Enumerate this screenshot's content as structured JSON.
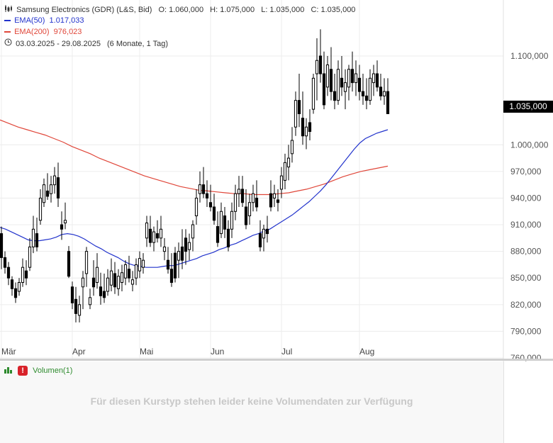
{
  "header": {
    "instrument": "Samsung Electronics (GDR) (L&S, Bid)",
    "open": "O: 1.060,000",
    "high": "H: 1.075,000",
    "low": "L: 1.035,000",
    "close": "C: 1.035,000",
    "ema50_label": "EMA(50)",
    "ema50_value": "1.017,033",
    "ema200_label": "EMA(200)",
    "ema200_value": "976,023",
    "range": "03.03.2025 - 29.08.2025",
    "range_detail": "(6 Monate, 1 Tag)"
  },
  "last_price_label": "1.035,000",
  "volume": {
    "label": "Volumen(1)",
    "message": "Für diesen Kurstyp stehen leider keine Volumendaten zur Verfügung"
  },
  "colors": {
    "ema50": "#2233cc",
    "ema200": "#e0473a",
    "candle": "#000000",
    "volume_label": "#2e8b2e",
    "warning": "#d8222a"
  },
  "icons": [
    "candlestick-icon",
    "clock-icon",
    "volume-bars-icon",
    "warning-icon"
  ],
  "chart_data": {
    "type": "candlestick",
    "x_tick_labels": [
      "Mär",
      "Apr",
      "Mai",
      "Jun",
      "Jul",
      "Aug"
    ],
    "y_tick_values": [
      760,
      790,
      820,
      850,
      880,
      910,
      940,
      970,
      1000,
      1100
    ],
    "y_tick_labels": [
      "760,000",
      "790,000",
      "820,000",
      "850,000",
      "880,000",
      "910,000",
      "940,000",
      "970,000",
      "1.000,000",
      "1.100,000"
    ],
    "ylim": [
      758,
      1140
    ],
    "grid": true,
    "candles": [
      {
        "o": 900,
        "h": 908,
        "l": 860,
        "c": 873
      },
      {
        "o": 873,
        "h": 880,
        "l": 855,
        "c": 862
      },
      {
        "o": 862,
        "h": 868,
        "l": 842,
        "c": 850
      },
      {
        "o": 848,
        "h": 852,
        "l": 830,
        "c": 838
      },
      {
        "o": 838,
        "h": 845,
        "l": 822,
        "c": 828
      },
      {
        "o": 835,
        "h": 850,
        "l": 830,
        "c": 845
      },
      {
        "o": 845,
        "h": 872,
        "l": 840,
        "c": 862
      },
      {
        "o": 858,
        "h": 870,
        "l": 842,
        "c": 850
      },
      {
        "o": 862,
        "h": 895,
        "l": 858,
        "c": 885
      },
      {
        "o": 885,
        "h": 920,
        "l": 878,
        "c": 905
      },
      {
        "o": 900,
        "h": 918,
        "l": 880,
        "c": 885
      },
      {
        "o": 915,
        "h": 950,
        "l": 910,
        "c": 940
      },
      {
        "o": 935,
        "h": 962,
        "l": 930,
        "c": 955
      },
      {
        "o": 948,
        "h": 968,
        "l": 938,
        "c": 942
      },
      {
        "o": 945,
        "h": 965,
        "l": 935,
        "c": 955
      },
      {
        "o": 955,
        "h": 975,
        "l": 945,
        "c": 965
      },
      {
        "o": 963,
        "h": 980,
        "l": 930,
        "c": 940
      },
      {
        "o": 910,
        "h": 925,
        "l": 893,
        "c": 905
      },
      {
        "o": 912,
        "h": 935,
        "l": 905,
        "c": 915
      },
      {
        "o": 880,
        "h": 886,
        "l": 850,
        "c": 852
      },
      {
        "o": 840,
        "h": 846,
        "l": 815,
        "c": 822
      },
      {
        "o": 826,
        "h": 840,
        "l": 800,
        "c": 810
      },
      {
        "o": 808,
        "h": 830,
        "l": 800,
        "c": 820
      },
      {
        "o": 840,
        "h": 858,
        "l": 815,
        "c": 850
      },
      {
        "o": 855,
        "h": 885,
        "l": 840,
        "c": 880
      },
      {
        "o": 820,
        "h": 838,
        "l": 815,
        "c": 828
      },
      {
        "o": 850,
        "h": 870,
        "l": 830,
        "c": 840
      },
      {
        "o": 845,
        "h": 878,
        "l": 838,
        "c": 862
      },
      {
        "o": 840,
        "h": 856,
        "l": 820,
        "c": 830
      },
      {
        "o": 835,
        "h": 855,
        "l": 822,
        "c": 828
      },
      {
        "o": 835,
        "h": 860,
        "l": 830,
        "c": 850
      },
      {
        "o": 842,
        "h": 872,
        "l": 835,
        "c": 858
      },
      {
        "o": 855,
        "h": 868,
        "l": 832,
        "c": 840
      },
      {
        "o": 838,
        "h": 860,
        "l": 830,
        "c": 852
      },
      {
        "o": 845,
        "h": 865,
        "l": 835,
        "c": 856
      },
      {
        "o": 850,
        "h": 870,
        "l": 842,
        "c": 865
      },
      {
        "o": 860,
        "h": 875,
        "l": 845,
        "c": 850
      },
      {
        "o": 843,
        "h": 858,
        "l": 835,
        "c": 848
      },
      {
        "o": 850,
        "h": 872,
        "l": 842,
        "c": 865
      },
      {
        "o": 858,
        "h": 880,
        "l": 850,
        "c": 872
      },
      {
        "o": 862,
        "h": 878,
        "l": 855,
        "c": 870
      },
      {
        "o": 895,
        "h": 920,
        "l": 885,
        "c": 912
      },
      {
        "o": 905,
        "h": 920,
        "l": 885,
        "c": 890
      },
      {
        "o": 890,
        "h": 908,
        "l": 880,
        "c": 902
      },
      {
        "o": 900,
        "h": 915,
        "l": 890,
        "c": 895
      },
      {
        "o": 895,
        "h": 920,
        "l": 885,
        "c": 905
      },
      {
        "o": 880,
        "h": 895,
        "l": 870,
        "c": 885
      },
      {
        "o": 870,
        "h": 885,
        "l": 855,
        "c": 860
      },
      {
        "o": 860,
        "h": 878,
        "l": 840,
        "c": 845
      },
      {
        "o": 878,
        "h": 885,
        "l": 845,
        "c": 850
      },
      {
        "o": 870,
        "h": 890,
        "l": 850,
        "c": 880
      },
      {
        "o": 885,
        "h": 905,
        "l": 860,
        "c": 870
      },
      {
        "o": 895,
        "h": 905,
        "l": 865,
        "c": 880
      },
      {
        "o": 882,
        "h": 900,
        "l": 870,
        "c": 890
      },
      {
        "o": 895,
        "h": 915,
        "l": 880,
        "c": 910
      },
      {
        "o": 920,
        "h": 950,
        "l": 910,
        "c": 940
      },
      {
        "o": 945,
        "h": 970,
        "l": 935,
        "c": 955
      },
      {
        "o": 955,
        "h": 975,
        "l": 940,
        "c": 945
      },
      {
        "o": 945,
        "h": 960,
        "l": 930,
        "c": 940
      },
      {
        "o": 935,
        "h": 955,
        "l": 925,
        "c": 930
      },
      {
        "o": 930,
        "h": 945,
        "l": 910,
        "c": 915
      },
      {
        "o": 908,
        "h": 925,
        "l": 885,
        "c": 890
      },
      {
        "o": 900,
        "h": 935,
        "l": 895,
        "c": 925
      },
      {
        "o": 920,
        "h": 930,
        "l": 895,
        "c": 905
      },
      {
        "o": 905,
        "h": 915,
        "l": 880,
        "c": 885
      },
      {
        "o": 905,
        "h": 935,
        "l": 895,
        "c": 925
      },
      {
        "o": 925,
        "h": 955,
        "l": 915,
        "c": 945
      },
      {
        "o": 945,
        "h": 965,
        "l": 930,
        "c": 950
      },
      {
        "o": 950,
        "h": 965,
        "l": 930,
        "c": 935
      },
      {
        "o": 930,
        "h": 950,
        "l": 905,
        "c": 910
      },
      {
        "o": 920,
        "h": 945,
        "l": 910,
        "c": 935
      },
      {
        "o": 935,
        "h": 955,
        "l": 925,
        "c": 945
      },
      {
        "o": 940,
        "h": 960,
        "l": 925,
        "c": 930
      },
      {
        "o": 900,
        "h": 915,
        "l": 880,
        "c": 885
      },
      {
        "o": 895,
        "h": 910,
        "l": 880,
        "c": 905
      },
      {
        "o": 905,
        "h": 920,
        "l": 890,
        "c": 900
      },
      {
        "o": 945,
        "h": 960,
        "l": 925,
        "c": 930
      },
      {
        "o": 940,
        "h": 955,
        "l": 930,
        "c": 945
      },
      {
        "o": 938,
        "h": 950,
        "l": 925,
        "c": 935
      },
      {
        "o": 950,
        "h": 975,
        "l": 940,
        "c": 965
      },
      {
        "o": 960,
        "h": 990,
        "l": 950,
        "c": 980
      },
      {
        "o": 975,
        "h": 1000,
        "l": 960,
        "c": 985
      },
      {
        "o": 990,
        "h": 1020,
        "l": 980,
        "c": 1005
      },
      {
        "o": 1020,
        "h": 1060,
        "l": 1010,
        "c": 1050
      },
      {
        "o": 1050,
        "h": 1080,
        "l": 1020,
        "c": 1035
      },
      {
        "o": 1030,
        "h": 1060,
        "l": 1000,
        "c": 1010
      },
      {
        "o": 1010,
        "h": 1030,
        "l": 995,
        "c": 1020
      },
      {
        "o": 1025,
        "h": 1040,
        "l": 1005,
        "c": 1015
      },
      {
        "o": 1040,
        "h": 1080,
        "l": 1035,
        "c": 1075
      },
      {
        "o": 1080,
        "h": 1120,
        "l": 1050,
        "c": 1095
      },
      {
        "o": 1100,
        "h": 1130,
        "l": 1070,
        "c": 1080
      },
      {
        "o": 1080,
        "h": 1105,
        "l": 1040,
        "c": 1045
      },
      {
        "o": 1065,
        "h": 1100,
        "l": 1055,
        "c": 1090
      },
      {
        "o": 1085,
        "h": 1110,
        "l": 1050,
        "c": 1060
      },
      {
        "o": 1060,
        "h": 1080,
        "l": 1040,
        "c": 1050
      },
      {
        "o": 1050,
        "h": 1095,
        "l": 1045,
        "c": 1085
      },
      {
        "o": 1075,
        "h": 1100,
        "l": 1055,
        "c": 1065
      },
      {
        "o": 1060,
        "h": 1085,
        "l": 1040,
        "c": 1070
      },
      {
        "o": 1065,
        "h": 1090,
        "l": 1050,
        "c": 1085
      },
      {
        "o": 1085,
        "h": 1105,
        "l": 1060,
        "c": 1070
      },
      {
        "o": 1070,
        "h": 1095,
        "l": 1055,
        "c": 1080
      },
      {
        "o": 1075,
        "h": 1090,
        "l": 1050,
        "c": 1060
      },
      {
        "o": 1060,
        "h": 1080,
        "l": 1045,
        "c": 1055
      },
      {
        "o": 1055,
        "h": 1075,
        "l": 1040,
        "c": 1050
      },
      {
        "o": 1050,
        "h": 1085,
        "l": 1045,
        "c": 1075
      },
      {
        "o": 1070,
        "h": 1090,
        "l": 1055,
        "c": 1080
      },
      {
        "o": 1080,
        "h": 1095,
        "l": 1060,
        "c": 1065
      },
      {
        "o": 1065,
        "h": 1080,
        "l": 1050,
        "c": 1055
      },
      {
        "o": 1055,
        "h": 1075,
        "l": 1045,
        "c": 1060
      },
      {
        "o": 1060,
        "h": 1075,
        "l": 1035,
        "c": 1035
      }
    ],
    "ema50": [
      907,
      905,
      902,
      899,
      896,
      893,
      892,
      892,
      893,
      894,
      896,
      899,
      900,
      899,
      897,
      894,
      890,
      886,
      883,
      879,
      876,
      873,
      869,
      866,
      864,
      863,
      862,
      862,
      862,
      863,
      864,
      864,
      866,
      868,
      870,
      872,
      875,
      877,
      879,
      882,
      884,
      887,
      889,
      892,
      895,
      898,
      900,
      903,
      905,
      909,
      913,
      917,
      921,
      926,
      931,
      936,
      942,
      948,
      955,
      963,
      971,
      979,
      987,
      995,
      1002,
      1007,
      1010,
      1013,
      1015,
      1017
    ],
    "ema200": [
      1028,
      1024,
      1020,
      1017,
      1014,
      1011,
      1007,
      1003,
      998,
      994,
      990,
      985,
      981,
      977,
      973,
      969,
      965,
      962,
      959,
      956,
      953,
      951,
      949,
      948,
      947,
      946,
      945,
      945,
      944,
      944,
      944,
      945,
      946,
      948,
      950,
      953,
      956,
      960,
      964,
      967,
      970,
      972,
      974,
      976
    ],
    "series": [
      {
        "name": "EMA(50)",
        "last": 1017.033
      },
      {
        "name": "EMA(200)",
        "last": 976.023
      }
    ]
  }
}
